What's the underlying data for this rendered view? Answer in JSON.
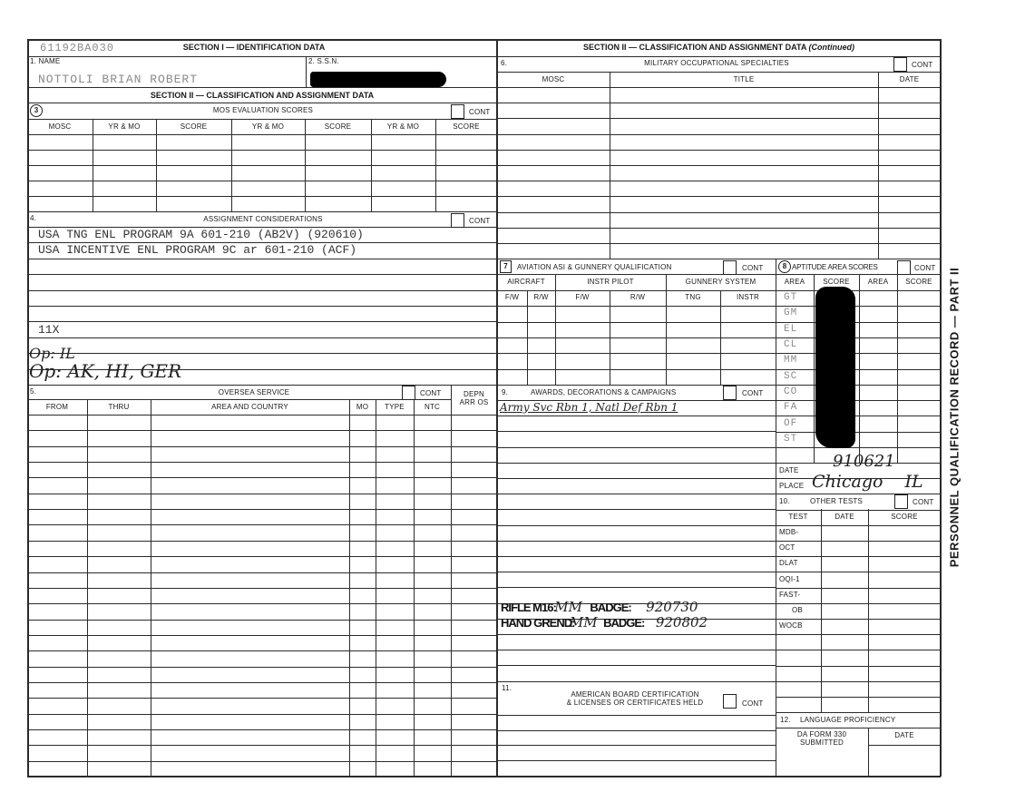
{
  "form_code": "61192BA030",
  "section1": {
    "title": "SECTION I — IDENTIFICATION DATA",
    "name_label": "1. NAME",
    "name_value": "NOTTOLI BRIAN ROBERT",
    "ssn_label": "2. S.S.N."
  },
  "section2_title": "SECTION II — CLASSIFICATION AND ASSIGNMENT DATA",
  "section2_continued_title": "SECTION II — CLASSIFICATION AND ASSIGNMENT DATA",
  "continued": "(Continued)",
  "mos_eval": {
    "number": "3",
    "title": "MOS EVALUATION SCORES",
    "cont": "CONT",
    "columns": [
      "MOSC",
      "YR & MO",
      "SCORE",
      "YR & MO",
      "SCORE",
      "YR & MO",
      "SCORE"
    ]
  },
  "assignment": {
    "number": "4.",
    "title": "ASSIGNMENT CONSIDERATIONS",
    "cont": "CONT",
    "lines": [
      "USA TNG ENL PROGRAM 9A 601-210 (AB2V)  (920610)",
      "USA INCENTIVE ENL PROGRAM 9C ar 601-210 (ACF)",
      "11X"
    ],
    "handwritten": [
      "Op: IL",
      "Op: AK, HI, GER"
    ]
  },
  "oversea": {
    "number": "5.",
    "title": "OVERSEA SERVICE",
    "cont": "CONT",
    "columns": [
      "FROM",
      "THRU",
      "AREA AND COUNTRY",
      "MO",
      "TYPE",
      "NTC"
    ],
    "depn_line1": "DEPN",
    "depn_line2": "ARR OS"
  },
  "mos": {
    "number": "6.",
    "title": "MILITARY OCCUPATIONAL SPECIALTIES",
    "cont": "CONT",
    "columns": [
      "MOSC",
      "TITLE",
      "DATE"
    ]
  },
  "aviation": {
    "number": "7",
    "title": "AVIATION ASI & GUNNERY QUALIFICATION",
    "cont": "CONT",
    "groups": [
      "AIRCRAFT",
      "INSTR PILOT",
      "GUNNERY SYSTEM"
    ],
    "subcolumns": [
      "F/W",
      "R/W",
      "F/W",
      "R/W",
      "TNG",
      "INSTR"
    ]
  },
  "aptitude": {
    "number": "8",
    "title": "APTITUDE AREA SCORES",
    "cont": "CONT",
    "columns": [
      "AREA",
      "SCORE",
      "AREA",
      "SCORE"
    ],
    "areas": [
      "GT",
      "GM",
      "EL",
      "CL",
      "MM",
      "SC",
      "CO",
      "FA",
      "OF",
      "ST"
    ],
    "date_label": "DATE",
    "date_value": "910621",
    "place_label": "PLACE",
    "place_value": "Chicago IL"
  },
  "awards": {
    "number": "9.",
    "title": "AWARDS, DECORATIONS & CAMPAIGNS",
    "cont": "CONT",
    "handwritten": "Army Svc Rbn 1, Natl Def Rbn 1",
    "stamps": [
      {
        "label": "RIFLE M16:",
        "value": "MM",
        "badge": "BADGE:",
        "date": "920730"
      },
      {
        "label": "HAND GREND:",
        "value": "MM",
        "badge": "BADGE:",
        "date": "920802"
      }
    ]
  },
  "other_tests": {
    "number": "10.",
    "title": "OTHER TESTS",
    "cont": "CONT",
    "columns": [
      "TEST",
      "DATE",
      "SCORE"
    ],
    "tests": [
      "MDB-",
      "OCT",
      "DLAT",
      "OQI-1",
      "FAST-",
      "OB",
      "WOCB"
    ]
  },
  "certs": {
    "number": "11.",
    "title_line1": "AMERICAN BOARD CERTIFICATION",
    "title_line2": "& LICENSES OR CERTIFICATES HELD",
    "cont": "CONT"
  },
  "language": {
    "number": "12.",
    "title": "LANGUAGE PROFICIENCY",
    "da_form_line1": "DA FORM 330",
    "da_form_line2": "SUBMITTED",
    "date": "DATE"
  },
  "side_label": "PERSONNEL QUALIFICATION RECORD — PART II"
}
